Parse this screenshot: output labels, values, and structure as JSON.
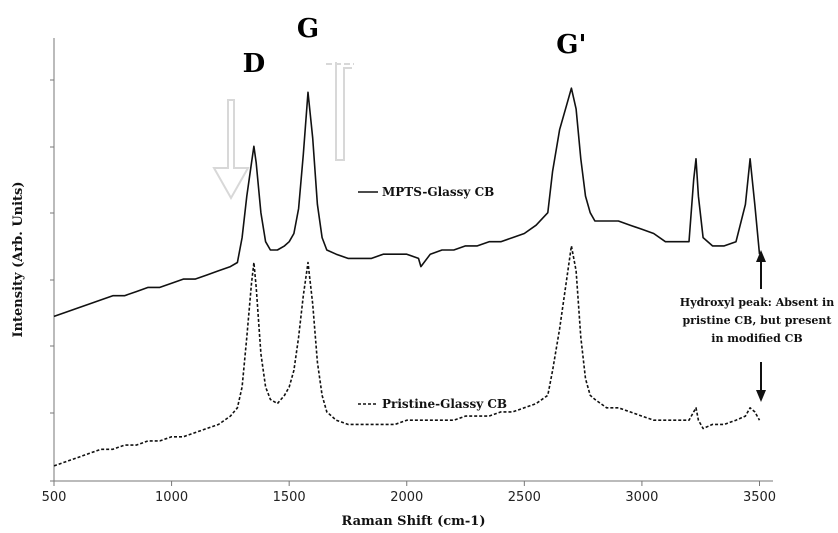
{
  "chart_data": {
    "type": "line",
    "xlabel": "Raman Shift (cm-1)",
    "ylabel": "Intensity (Arb. Units)",
    "xlim": [
      500,
      3500
    ],
    "xticks": [
      500,
      1000,
      1500,
      2000,
      2500,
      3000,
      3500
    ],
    "ylim": [
      0,
      100
    ],
    "grid": false,
    "peak_labels": [
      {
        "text": "D",
        "x": 1350
      },
      {
        "text": "G",
        "x": 1580
      },
      {
        "text": "G'",
        "x": 2700
      }
    ],
    "annotation": {
      "lines": [
        "Hydroxyl peak: Absent in",
        "pristine CB, but present",
        "in modified CB"
      ],
      "x": 3460
    },
    "series": [
      {
        "name": "MPTS-Glassy CB",
        "style": "solid",
        "color": "#111111",
        "x": [
          500,
          550,
          600,
          650,
          700,
          750,
          800,
          850,
          900,
          950,
          1000,
          1050,
          1100,
          1150,
          1200,
          1250,
          1280,
          1300,
          1320,
          1340,
          1350,
          1360,
          1380,
          1400,
          1420,
          1450,
          1480,
          1500,
          1520,
          1540,
          1560,
          1580,
          1600,
          1620,
          1640,
          1660,
          1700,
          1750,
          1800,
          1850,
          1900,
          1950,
          2000,
          2050,
          2060,
          2100,
          2150,
          2200,
          2250,
          2300,
          2350,
          2400,
          2450,
          2500,
          2550,
          2600,
          2620,
          2650,
          2680,
          2700,
          2720,
          2740,
          2760,
          2780,
          2800,
          2850,
          2900,
          2950,
          3000,
          3050,
          3100,
          3150,
          3200,
          3220,
          3230,
          3240,
          3260,
          3300,
          3350,
          3400,
          3440,
          3460,
          3480,
          3500
        ],
        "values": [
          37,
          38,
          39,
          40,
          41,
          42,
          42,
          43,
          44,
          44,
          45,
          46,
          46,
          47,
          48,
          49,
          50,
          56,
          66,
          74,
          78,
          74,
          62,
          55,
          53,
          53,
          54,
          55,
          57,
          63,
          76,
          91,
          80,
          64,
          56,
          53,
          52,
          51,
          51,
          51,
          52,
          52,
          52,
          51,
          49,
          52,
          53,
          53,
          54,
          54,
          55,
          55,
          56,
          57,
          59,
          62,
          72,
          82,
          88,
          92,
          87,
          75,
          66,
          62,
          60,
          60,
          60,
          59,
          58,
          57,
          55,
          55,
          55,
          70,
          75,
          66,
          56,
          54,
          54,
          55,
          64,
          75,
          64,
          52
        ]
      },
      {
        "name": "Pristine-Glassy CB",
        "style": "dashed",
        "color": "#111111",
        "x": [
          500,
          550,
          600,
          650,
          700,
          750,
          800,
          850,
          900,
          950,
          1000,
          1050,
          1100,
          1150,
          1200,
          1250,
          1280,
          1300,
          1320,
          1340,
          1350,
          1360,
          1380,
          1400,
          1420,
          1450,
          1480,
          1500,
          1520,
          1540,
          1560,
          1580,
          1600,
          1620,
          1640,
          1660,
          1700,
          1750,
          1800,
          1850,
          1900,
          1950,
          2000,
          2050,
          2100,
          2150,
          2200,
          2250,
          2300,
          2350,
          2400,
          2450,
          2500,
          2550,
          2600,
          2620,
          2650,
          2680,
          2700,
          2720,
          2740,
          2760,
          2780,
          2800,
          2850,
          2900,
          2950,
          3000,
          3050,
          3100,
          3150,
          3200,
          3220,
          3230,
          3240,
          3260,
          3300,
          3350,
          3400,
          3440,
          3460,
          3480,
          3500
        ],
        "values": [
          1,
          2,
          3,
          4,
          5,
          5,
          6,
          6,
          7,
          7,
          8,
          8,
          9,
          10,
          11,
          13,
          15,
          20,
          32,
          45,
          50,
          44,
          28,
          20,
          17,
          16,
          18,
          20,
          24,
          32,
          42,
          50,
          40,
          26,
          18,
          14,
          12,
          11,
          11,
          11,
          11,
          11,
          12,
          12,
          12,
          12,
          12,
          13,
          13,
          13,
          14,
          14,
          15,
          16,
          18,
          24,
          34,
          46,
          54,
          48,
          32,
          22,
          18,
          17,
          15,
          15,
          14,
          13,
          12,
          12,
          12,
          12,
          14,
          15,
          12,
          10,
          11,
          11,
          12,
          13,
          15,
          14,
          12
        ]
      }
    ]
  }
}
